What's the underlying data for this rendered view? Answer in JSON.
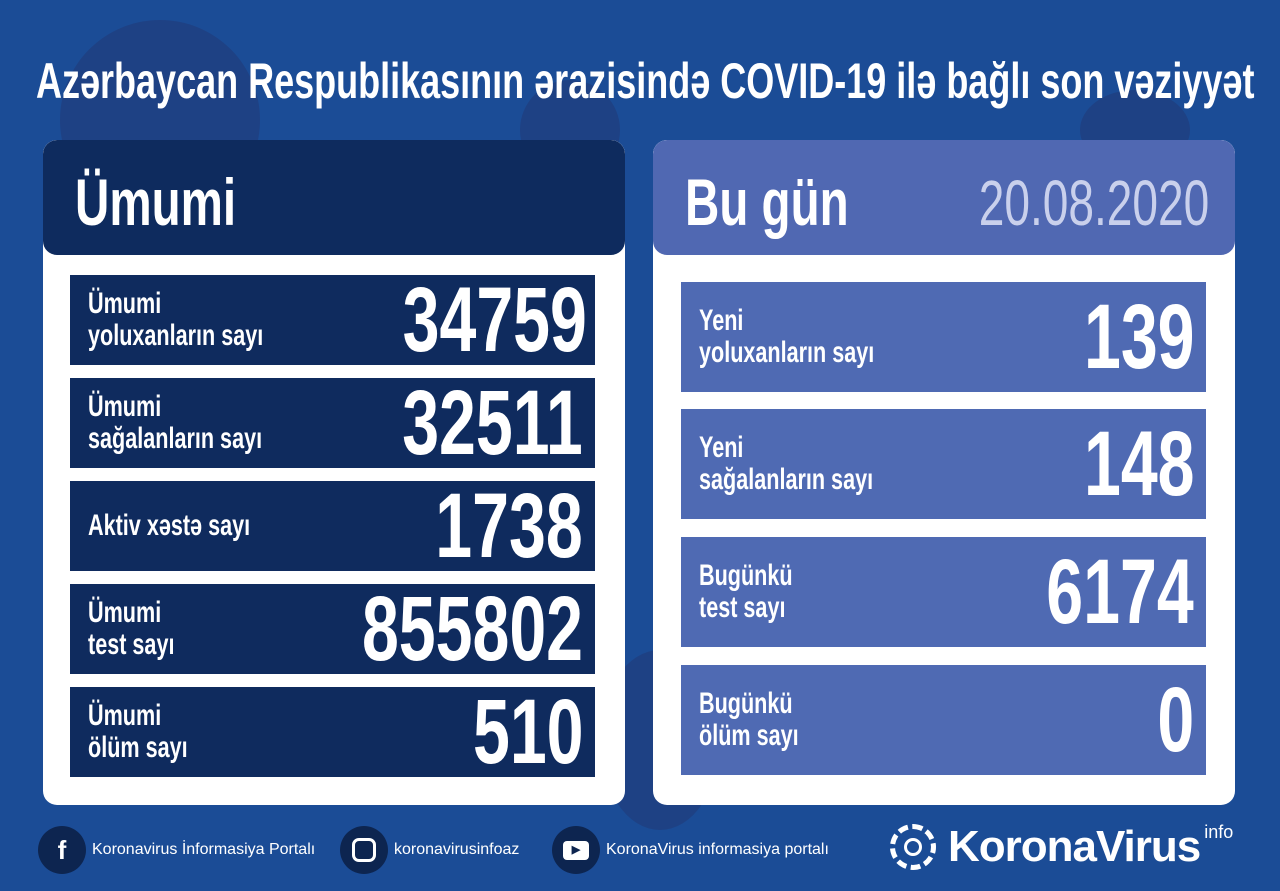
{
  "title": "Azərbaycan Respublikasının ərazisində COVID-19 ilə bağlı son vəziyyət",
  "colors": {
    "background": "#1b4c96",
    "left_header": "#0e2b5e",
    "right_header": "#5068b2",
    "left_rows": "#0f2b5e",
    "right_rows": "#4f6ab3"
  },
  "total": {
    "heading": "Ümumi",
    "rows": [
      {
        "label1": "Ümumi",
        "label2": "yoluxanların sayı",
        "value": "34759"
      },
      {
        "label1": "Ümumi",
        "label2": "sağalanların sayı",
        "value": "32511"
      },
      {
        "label1": "Aktiv xəstə sayı",
        "label2": "",
        "value": "1738"
      },
      {
        "label1": "Ümumi",
        "label2": "test sayı",
        "value": "855802"
      },
      {
        "label1": "Ümumi",
        "label2": "ölüm sayı",
        "value": "510"
      }
    ]
  },
  "today": {
    "heading": "Bu gün",
    "date": "20.08.2020",
    "rows": [
      {
        "label1": "Yeni",
        "label2": "yoluxanların sayı",
        "value": "139"
      },
      {
        "label1": "Yeni",
        "label2": "sağalanların sayı",
        "value": "148"
      },
      {
        "label1": "Bugünkü",
        "label2": "test sayı",
        "value": "6174"
      },
      {
        "label1": "Bugünkü",
        "label2": "ölüm sayı",
        "value": "0"
      }
    ]
  },
  "footer": {
    "facebook": {
      "icon": "facebook-icon",
      "text": "Koronavirus İnformasiya Portalı"
    },
    "instagram": {
      "icon": "instagram-icon",
      "text": "koronavirusinfoaz"
    },
    "youtube": {
      "icon": "youtube-icon",
      "text": "KoronaVirus informasiya portalı"
    },
    "brand": "KoronaVirus",
    "brand_sup": "info"
  }
}
